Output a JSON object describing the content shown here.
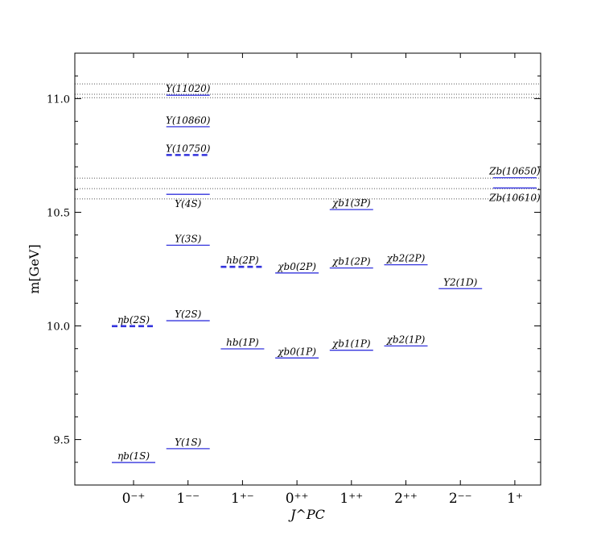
{
  "chart_data": {
    "type": "scatter",
    "xlabel": "J^PC",
    "ylabel": "m[GeV]",
    "ylim": [
      9.3,
      11.2
    ],
    "yticks": [
      "9.5",
      "10.0",
      "10.5",
      "11.0"
    ],
    "ytick_values": [
      9.5,
      10.0,
      10.5,
      11.0
    ],
    "categories": [
      "0⁻⁺",
      "1⁻⁻",
      "1⁺⁻",
      "0⁺⁺",
      "1⁺⁺",
      "2⁺⁺",
      "2⁻⁻",
      "1⁺"
    ],
    "colors": {
      "level": "#3333dd",
      "threshold": "#555555",
      "frame": "#000000"
    },
    "levels": [
      {
        "name": "ηb(1S)",
        "category": 0,
        "mass": 9.399,
        "style": "solid",
        "label_side": "above"
      },
      {
        "name": "ηb(2S)",
        "category": 0,
        "mass": 9.999,
        "style": "dashed",
        "label_side": "above"
      },
      {
        "name": "Υ(1S)",
        "category": 1,
        "mass": 9.46,
        "style": "solid",
        "label_side": "above"
      },
      {
        "name": "Υ(2S)",
        "category": 1,
        "mass": 10.023,
        "style": "solid",
        "label_side": "above"
      },
      {
        "name": "Υ(3S)",
        "category": 1,
        "mass": 10.355,
        "style": "solid",
        "label_side": "above"
      },
      {
        "name": "Υ(4S)",
        "category": 1,
        "mass": 10.579,
        "style": "solid",
        "label_side": "below"
      },
      {
        "name": "Υ(10750)",
        "category": 1,
        "mass": 10.752,
        "style": "dashed",
        "label_side": "above"
      },
      {
        "name": "Υ(10860)",
        "category": 1,
        "mass": 10.876,
        "style": "solid",
        "label_side": "above"
      },
      {
        "name": "Υ(11020)",
        "category": 1,
        "mass": 11.015,
        "style": "solid",
        "label_side": "above"
      },
      {
        "name": "hb(1P)",
        "category": 2,
        "mass": 9.899,
        "style": "solid",
        "label_side": "above"
      },
      {
        "name": "hb(2P)",
        "category": 2,
        "mass": 10.26,
        "style": "dashed",
        "label_side": "above"
      },
      {
        "name": "χb0(1P)",
        "category": 3,
        "mass": 9.859,
        "style": "solid",
        "label_side": "above"
      },
      {
        "name": "χb0(2P)",
        "category": 3,
        "mass": 10.233,
        "style": "solid",
        "label_side": "above"
      },
      {
        "name": "χb1(1P)",
        "category": 4,
        "mass": 9.893,
        "style": "solid",
        "label_side": "above"
      },
      {
        "name": "χb1(2P)",
        "category": 4,
        "mass": 10.255,
        "style": "solid",
        "label_side": "above"
      },
      {
        "name": "χb1(3P)",
        "category": 4,
        "mass": 10.512,
        "style": "solid",
        "label_side": "above"
      },
      {
        "name": "χb2(1P)",
        "category": 5,
        "mass": 9.912,
        "style": "solid",
        "label_side": "above"
      },
      {
        "name": "χb2(2P)",
        "category": 5,
        "mass": 10.269,
        "style": "solid",
        "label_side": "above"
      },
      {
        "name": "Υ2(1D)",
        "category": 6,
        "mass": 10.164,
        "style": "solid",
        "label_side": "above"
      },
      {
        "name": "Zb(10610)",
        "category": 7,
        "mass": 10.607,
        "style": "solid",
        "label_side": "below"
      },
      {
        "name": "Zb(10650)",
        "category": 7,
        "mass": 10.652,
        "style": "solid",
        "label_side": "above"
      }
    ],
    "thresholds": [
      10.559,
      10.604,
      10.65,
      11.004,
      11.019,
      11.065
    ]
  }
}
